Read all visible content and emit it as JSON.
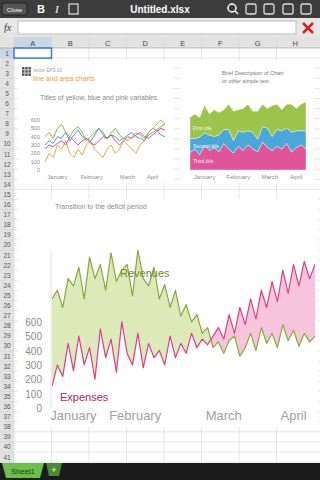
{
  "app": {
    "close": "Close",
    "bold": "B",
    "italic": "I",
    "file_name": "Untitled.xlsx",
    "formula_label": "fx",
    "sheet_tab": "Sheet1",
    "add_tab": "+"
  },
  "sheet": {
    "columns": [
      "A",
      "B",
      "C",
      "D",
      "E",
      "F",
      "G",
      "H"
    ],
    "rows": [
      1,
      2,
      3,
      4,
      5,
      6,
      7,
      8,
      9,
      10,
      11,
      12,
      13,
      14,
      15,
      16,
      17,
      18,
      19,
      20,
      21,
      22,
      23,
      24,
      25,
      26,
      27,
      28,
      29,
      30,
      31,
      32,
      33,
      34,
      35,
      36,
      37,
      38,
      39,
      40,
      41
    ]
  },
  "chart_data": [
    {
      "type": "line",
      "annotations": [
        "vector EPS 10"
      ],
      "subtitle": "line and area charts",
      "title": "Titles of yellow, blue and pink variables",
      "x": [
        0,
        1,
        2,
        3,
        4,
        5,
        6,
        7,
        8,
        9,
        10,
        11,
        12,
        13,
        14,
        15,
        16,
        17,
        18,
        19,
        20,
        21,
        22,
        23,
        24,
        25,
        26,
        27,
        28,
        29
      ],
      "xlim": [
        0,
        29
      ],
      "xticks": [
        {
          "value": 3,
          "label": "January"
        },
        {
          "value": 11.3,
          "label": "February"
        },
        {
          "value": 20,
          "label": "March"
        },
        {
          "value": 26,
          "label": "April"
        }
      ],
      "ylim": [
        0,
        600
      ],
      "yticks": [
        0,
        100,
        200,
        300,
        400,
        500,
        600
      ],
      "grid": false,
      "series": [
        {
          "color": "#3a8fd0",
          "values": [
            300,
            350,
            320,
            400,
            380,
            450,
            350,
            420,
            480,
            400,
            380,
            350,
            420,
            500,
            450,
            380,
            420,
            400,
            350,
            380,
            420,
            450,
            400,
            380,
            350,
            420,
            450,
            480,
            420,
            400
          ]
        },
        {
          "color": "#e0a030",
          "values": [
            100,
            200,
            150,
            300,
            250,
            350,
            200,
            150,
            250,
            180,
            300,
            350,
            250,
            200,
            150,
            250,
            300,
            200,
            250,
            350,
            300,
            250,
            200,
            300,
            350,
            450,
            500,
            550,
            600,
            550
          ]
        },
        {
          "color": "#d04080",
          "values": [
            250,
            300,
            280,
            320,
            350,
            300,
            400,
            350,
            300,
            350,
            380,
            320,
            300,
            350,
            400,
            380,
            420,
            350,
            300,
            350,
            400,
            380,
            420,
            450,
            400,
            380,
            420,
            460,
            500,
            480
          ]
        },
        {
          "color": "#8aa63a",
          "values": [
            400,
            450,
            380,
            500,
            550,
            450,
            400,
            480,
            520,
            450,
            350,
            400,
            450,
            500,
            420,
            380,
            450,
            500,
            420,
            380,
            350,
            400,
            450,
            420,
            380,
            450,
            500,
            480,
            520,
            550
          ]
        }
      ]
    },
    {
      "type": "area",
      "stacked": true,
      "title": [
        "Brief Description of Chart",
        "or other simple text"
      ],
      "x": [
        0,
        1,
        2,
        3,
        4,
        5,
        6,
        7,
        8,
        9,
        10,
        11,
        12,
        13,
        14,
        15,
        16,
        17,
        18,
        19,
        20,
        21,
        22,
        23,
        24
      ],
      "xlim": [
        0,
        24
      ],
      "xticks": [
        {
          "value": 3,
          "label": "January"
        },
        {
          "value": 10,
          "label": "February"
        },
        {
          "value": 16.5,
          "label": "March"
        },
        {
          "value": 22,
          "label": "April"
        }
      ],
      "ylim": [
        0,
        100
      ],
      "tick_labels": "x",
      "series": [
        {
          "name": "Third title",
          "color": "#e0559a",
          "values": [
            25,
            30,
            22,
            35,
            28,
            32,
            26,
            38,
            30,
            24,
            34,
            28,
            36,
            30,
            26,
            40,
            32,
            28,
            34,
            30,
            38,
            26,
            32,
            36,
            30
          ]
        },
        {
          "name": "Second title",
          "color": "#4aa8d8",
          "values": [
            20,
            15,
            25,
            18,
            22,
            16,
            24,
            20,
            28,
            18,
            22,
            26,
            20,
            24,
            18,
            22,
            28,
            20,
            24,
            26,
            22,
            28,
            24,
            20,
            26
          ]
        },
        {
          "name": "First title",
          "color": "#9cc44a",
          "values": [
            30,
            35,
            28,
            40,
            30,
            38,
            32,
            28,
            36,
            42,
            30,
            34,
            38,
            30,
            40,
            32,
            28,
            44,
            36,
            30,
            34,
            40,
            32,
            38,
            42
          ]
        }
      ]
    },
    {
      "type": "line",
      "title": "Transition to the deficit period",
      "x": [
        0,
        1,
        2,
        3,
        4,
        5,
        6,
        7,
        8,
        9,
        10,
        11,
        12,
        13,
        14,
        15,
        16,
        17,
        18,
        19,
        20,
        21,
        22,
        23,
        24,
        25,
        26,
        27,
        28,
        29,
        30,
        31,
        32,
        33,
        34,
        35,
        36,
        37,
        38,
        39,
        40,
        41,
        42,
        43,
        44,
        45,
        46,
        47,
        48,
        49
      ],
      "xlim": [
        0,
        49
      ],
      "xticks": [
        {
          "value": 4,
          "label": "January"
        },
        {
          "value": 15.5,
          "label": "February"
        },
        {
          "value": 32,
          "label": "March"
        },
        {
          "value": 45,
          "label": "April"
        }
      ],
      "ylim": [
        0,
        1100
      ],
      "yticks": [
        0,
        100,
        200,
        300,
        400,
        500,
        600
      ],
      "series": [
        {
          "name": "Revenues",
          "color": "#8aa63a",
          "values": [
            760,
            820,
            700,
            900,
            850,
            980,
            760,
            1050,
            900,
            1000,
            820,
            1080,
            880,
            960,
            1000,
            780,
            1100,
            900,
            850,
            980,
            760,
            860,
            700,
            820,
            640,
            720,
            600,
            650,
            520,
            560,
            420,
            460,
            380,
            470,
            500,
            360,
            420,
            520,
            400,
            560,
            450,
            520,
            420,
            580,
            470,
            540,
            430,
            520,
            460,
            500
          ]
        },
        {
          "name": "Expenses",
          "color": "#d63f8a",
          "values": [
            150,
            300,
            220,
            450,
            260,
            500,
            300,
            420,
            200,
            550,
            350,
            480,
            250,
            600,
            380,
            300,
            520,
            280,
            450,
            350,
            400,
            300,
            500,
            350,
            450,
            380,
            520,
            420,
            480,
            440,
            500,
            560,
            480,
            650,
            520,
            700,
            580,
            760,
            620,
            820,
            700,
            880,
            740,
            960,
            800,
            1000,
            850,
            1020,
            900,
            1000
          ]
        }
      ]
    }
  ]
}
